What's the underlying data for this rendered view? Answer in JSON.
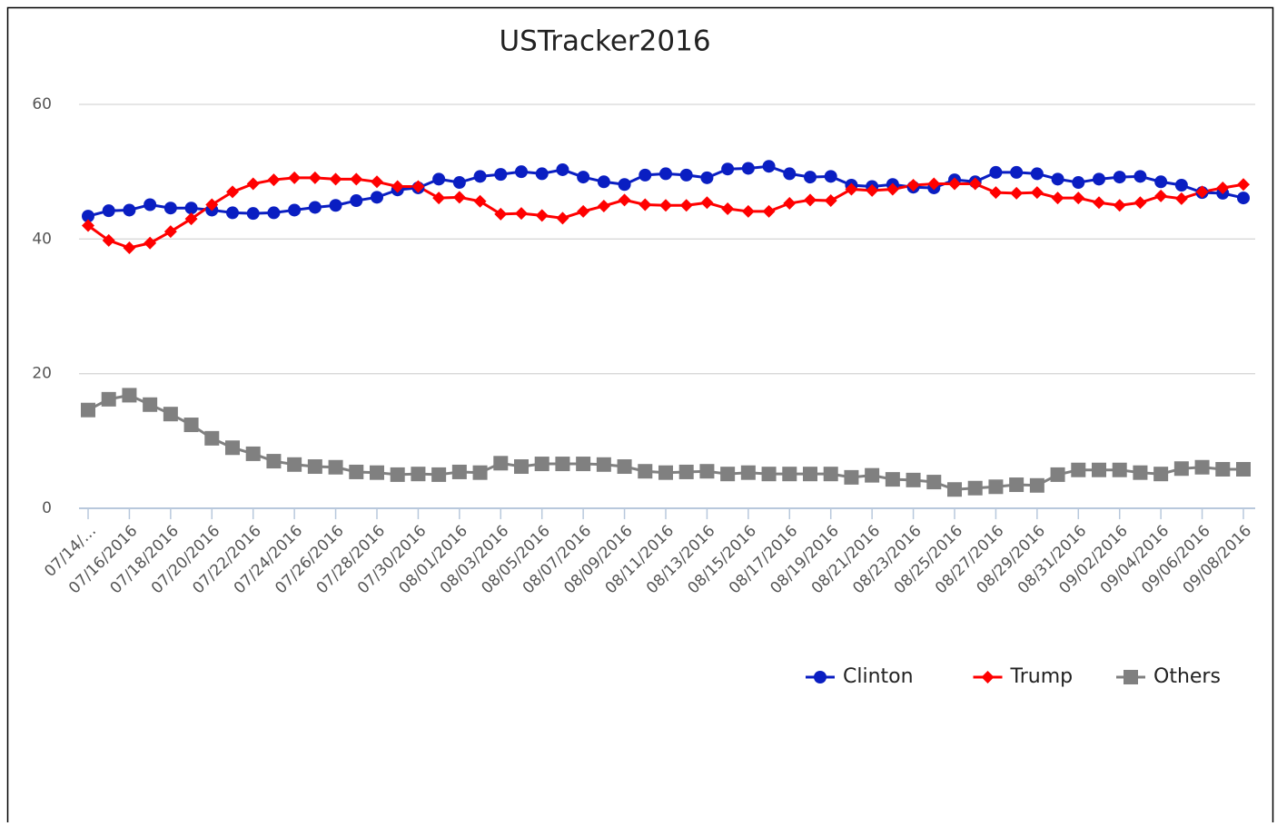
{
  "chart_data": {
    "type": "line",
    "title": "USTracker2016",
    "categories": [
      "07/14/…",
      null,
      "07/16/2016",
      null,
      "07/18/2016",
      null,
      "07/20/2016",
      null,
      "07/22/2016",
      null,
      "07/24/2016",
      null,
      "07/26/2016",
      null,
      "07/28/2016",
      null,
      "07/30/2016",
      null,
      "08/01/2016",
      null,
      "08/03/2016",
      null,
      "08/05/2016",
      null,
      "08/07/2016",
      null,
      "08/09/2016",
      null,
      "08/11/2016",
      null,
      "08/13/2016",
      null,
      "08/15/2016",
      null,
      "08/17/2016",
      null,
      "08/19/2016",
      null,
      "08/21/2016",
      null,
      "08/23/2016",
      null,
      "08/25/2016",
      null,
      "08/27/2016",
      null,
      "08/29/2016",
      null,
      "08/31/2016",
      null,
      "09/02/2016",
      null,
      "09/04/2016",
      null,
      "09/06/2016",
      null,
      "09/08/2016"
    ],
    "series": [
      {
        "name": "Clinton",
        "color": "#0a1ec2",
        "marker": "circle",
        "values": [
          43.4,
          44.2,
          44.3,
          45.1,
          44.6,
          44.6,
          44.3,
          43.9,
          43.8,
          43.9,
          44.3,
          44.7,
          45.0,
          45.7,
          46.2,
          47.3,
          47.6,
          48.9,
          48.4,
          49.3,
          49.6,
          50.0,
          49.7,
          50.3,
          49.2,
          48.5,
          48.1,
          49.5,
          49.7,
          49.5,
          49.1,
          50.4,
          50.5,
          50.8,
          49.7,
          49.2,
          49.3,
          48.0,
          47.8,
          48.1,
          47.7,
          47.6,
          48.8,
          48.5,
          49.9,
          49.9,
          49.7,
          48.9,
          48.4,
          48.9,
          49.2,
          49.3,
          48.5,
          48.0,
          46.9,
          46.8,
          46.1
        ]
      },
      {
        "name": "Trump",
        "color": "#ff0000",
        "marker": "diamond",
        "values": [
          42.0,
          39.8,
          38.7,
          39.4,
          41.1,
          43.0,
          45.1,
          47.0,
          48.2,
          48.8,
          49.1,
          49.1,
          48.9,
          48.9,
          48.5,
          47.8,
          47.8,
          46.1,
          46.2,
          45.6,
          43.7,
          43.8,
          43.5,
          43.1,
          44.1,
          44.9,
          45.8,
          45.1,
          45.0,
          45.0,
          45.4,
          44.5,
          44.1,
          44.1,
          45.3,
          45.8,
          45.7,
          47.4,
          47.2,
          47.4,
          48.0,
          48.2,
          48.2,
          48.2,
          46.9,
          46.8,
          46.9,
          46.1,
          46.1,
          45.4,
          45.0,
          45.4,
          46.4,
          46.0,
          47.0,
          47.6,
          48.1
        ]
      },
      {
        "name": "Others",
        "color": "#808080",
        "marker": "square",
        "values": [
          14.6,
          16.2,
          16.8,
          15.4,
          14.0,
          12.4,
          10.4,
          9.0,
          8.1,
          7.0,
          6.5,
          6.2,
          6.1,
          5.4,
          5.3,
          5.0,
          5.1,
          5.0,
          5.4,
          5.3,
          6.7,
          6.2,
          6.6,
          6.6,
          6.6,
          6.5,
          6.2,
          5.5,
          5.3,
          5.4,
          5.5,
          5.1,
          5.3,
          5.1,
          5.1,
          5.1,
          5.1,
          4.6,
          4.9,
          4.3,
          4.2,
          3.9,
          2.8,
          3.0,
          3.2,
          3.5,
          3.4,
          5.0,
          5.7,
          5.7,
          5.7,
          5.3,
          5.1,
          5.9,
          6.1,
          5.8,
          5.8
        ]
      }
    ],
    "ylim": [
      0,
      60
    ],
    "yticks": [
      0,
      20,
      40,
      60
    ],
    "grid": true,
    "legend": "bottom-right"
  }
}
